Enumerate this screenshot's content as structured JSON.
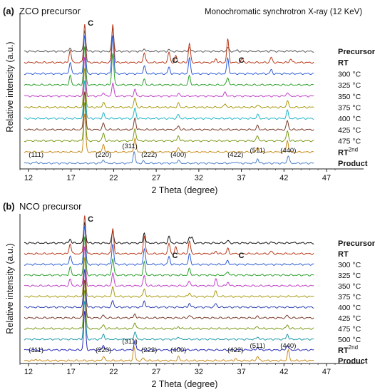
{
  "chart_data": [
    {
      "type": "line",
      "panel_label": "(a)",
      "title": "ZCO precursor",
      "subtitle": "Monochromatic synchrotron X-ray (12 KeV)",
      "xlabel": "2 Theta (degree)",
      "ylabel": "Relative intensity (a.u.)",
      "xlim": [
        11,
        48
      ],
      "x_ticks": [
        12,
        17,
        22,
        27,
        32,
        37,
        42,
        47
      ],
      "series": [
        {
          "name": "Precursor",
          "color": "#555555",
          "peaks": [
            [
              16.9,
              0.25
            ],
            [
              18.6,
              1.6
            ],
            [
              21.9,
              1.8
            ],
            [
              25.6,
              0.2
            ],
            [
              28.5,
              0.12
            ],
            [
              30.9,
              0.3
            ],
            [
              35.4,
              0.3
            ],
            [
              36.5,
              0.08
            ],
            [
              40.5,
              0.07
            ],
            [
              42.8,
              0.07
            ]
          ]
        },
        {
          "name": "RT",
          "color": "#b83a1a",
          "peaks": [
            [
              16.9,
              1.0
            ],
            [
              18.6,
              3.0
            ],
            [
              21.9,
              3.0
            ],
            [
              25.6,
              0.8
            ],
            [
              28.5,
              0.8
            ],
            [
              29.3,
              0.5
            ],
            [
              30.9,
              1.5
            ],
            [
              34.0,
              0.3
            ],
            [
              35.4,
              1.8
            ],
            [
              37.1,
              0.3
            ],
            [
              40.5,
              0.4
            ],
            [
              42.8,
              0.3
            ]
          ]
        },
        {
          "name": "300 °C",
          "color": "#2d5dd6",
          "peaks": [
            [
              16.9,
              0.9
            ],
            [
              18.6,
              3.0
            ],
            [
              21.9,
              3.0
            ],
            [
              25.6,
              0.6
            ],
            [
              28.5,
              0.5
            ],
            [
              30.9,
              1.2
            ],
            [
              35.4,
              1.2
            ],
            [
              40.5,
              0.3
            ]
          ]
        },
        {
          "name": "325 °C",
          "color": "#2ca02c",
          "peaks": [
            [
              16.9,
              0.7
            ],
            [
              18.6,
              3.0
            ],
            [
              21.9,
              2.5
            ],
            [
              25.6,
              0.4
            ],
            [
              30.9,
              0.7
            ],
            [
              35.4,
              0.6
            ]
          ]
        },
        {
          "name": "350 °C",
          "color": "#c040c8",
          "peaks": [
            [
              18.6,
              3.0
            ],
            [
              20.8,
              0.3
            ],
            [
              21.9,
              1.0
            ],
            [
              24.5,
              0.5
            ],
            [
              29.6,
              0.2
            ],
            [
              35.1,
              0.3
            ],
            [
              42.4,
              0.3
            ]
          ]
        },
        {
          "name": "375 °C",
          "color": "#a89a10",
          "peaks": [
            [
              18.6,
              3.0
            ],
            [
              20.8,
              0.4
            ],
            [
              24.5,
              0.7
            ],
            [
              29.6,
              0.3
            ],
            [
              35.1,
              0.3
            ],
            [
              38.9,
              0.2
            ],
            [
              42.4,
              0.5
            ]
          ]
        },
        {
          "name": "400 °C",
          "color": "#1fb5c8",
          "peaks": [
            [
              18.6,
              3.0
            ],
            [
              20.8,
              0.4
            ],
            [
              24.5,
              0.8
            ],
            [
              29.6,
              0.3
            ],
            [
              38.9,
              0.3
            ],
            [
              42.4,
              0.6
            ]
          ]
        },
        {
          "name": "425 °C",
          "color": "#7a3b2a",
          "peaks": [
            [
              18.6,
              3.0
            ],
            [
              20.8,
              0.5
            ],
            [
              24.5,
              0.9
            ],
            [
              29.6,
              0.3
            ],
            [
              38.9,
              0.3
            ],
            [
              42.4,
              0.7
            ]
          ]
        },
        {
          "name": "475 °C",
          "color": "#7a9a18",
          "peaks": [
            [
              18.6,
              3.0
            ],
            [
              20.8,
              0.6
            ],
            [
              24.5,
              1.0
            ],
            [
              29.6,
              0.4
            ],
            [
              38.9,
              0.4
            ],
            [
              42.4,
              0.8
            ]
          ]
        },
        {
          "name": "RT",
          "name_superscript": "2nd",
          "color": "#c98a1c",
          "peaks": [
            [
              18.6,
              3.0
            ],
            [
              20.8,
              0.6
            ],
            [
              24.5,
              1.1
            ],
            [
              29.6,
              0.4
            ],
            [
              38.9,
              0.4
            ],
            [
              42.4,
              0.9
            ]
          ]
        },
        {
          "name": "Product",
          "color": "#4d7fc9",
          "peaks": [
            [
              12.9,
              0.12
            ],
            [
              20.8,
              0.3
            ],
            [
              24.4,
              0.9
            ],
            [
              25.5,
              0.15
            ],
            [
              29.6,
              0.25
            ],
            [
              36.3,
              0.12
            ],
            [
              38.9,
              0.35
            ],
            [
              42.5,
              0.6
            ]
          ]
        }
      ],
      "peak_labels": [
        {
          "text": "(111)",
          "x": 12.9
        },
        {
          "text": "(220)",
          "x": 20.8
        },
        {
          "text": "(311)",
          "x": 24.4
        },
        {
          "text": "(222)",
          "x": 25.5
        },
        {
          "text": "(400)",
          "x": 29.6
        },
        {
          "text": "(422)",
          "x": 36.3
        },
        {
          "text": "(511)",
          "x": 38.9
        },
        {
          "text": "(440)",
          "x": 42.5
        }
      ],
      "c_markers": [
        {
          "text": "C",
          "x": 19.3
        },
        {
          "text": "C",
          "x": 29.2
        },
        {
          "text": "C",
          "x": 37.0
        }
      ]
    },
    {
      "type": "line",
      "panel_label": "(b)",
      "title": "NCO precursor",
      "subtitle": "",
      "xlabel": "2 Theta (degree)",
      "ylabel": "Relative intensity (a.u.)",
      "xlim": [
        11,
        48
      ],
      "x_ticks": [
        12,
        17,
        22,
        27,
        32,
        37,
        42,
        47
      ],
      "series": [
        {
          "name": "Precursor",
          "color": "#111111",
          "peaks": [
            [
              16.9,
              0.3
            ],
            [
              18.6,
              1.6
            ],
            [
              21.9,
              0.9
            ],
            [
              25.6,
              0.8
            ],
            [
              28.5,
              0.5
            ],
            [
              30.9,
              0.45
            ],
            [
              31.2,
              0.4
            ],
            [
              35.4,
              0.2
            ],
            [
              40.5,
              0.07
            ],
            [
              43.0,
              0.06
            ]
          ]
        },
        {
          "name": "RT",
          "color": "#b83a1a",
          "peaks": [
            [
              16.9,
              0.8
            ],
            [
              18.6,
              3.0
            ],
            [
              21.9,
              2.0
            ],
            [
              25.6,
              1.4
            ],
            [
              28.5,
              0.8
            ],
            [
              29.3,
              0.5
            ],
            [
              30.9,
              1.0
            ],
            [
              34.0,
              0.2
            ],
            [
              35.4,
              0.4
            ],
            [
              40.5,
              0.2
            ]
          ]
        },
        {
          "name": "300 °C",
          "color": "#2d5dd6",
          "peaks": [
            [
              16.9,
              0.7
            ],
            [
              18.6,
              3.0
            ],
            [
              21.9,
              1.6
            ],
            [
              25.6,
              1.2
            ],
            [
              28.5,
              0.6
            ],
            [
              30.9,
              0.8
            ],
            [
              35.4,
              0.3
            ]
          ]
        },
        {
          "name": "325 °C",
          "color": "#2ca02c",
          "peaks": [
            [
              16.9,
              0.6
            ],
            [
              18.6,
              3.0
            ],
            [
              21.9,
              1.3
            ],
            [
              25.6,
              1.0
            ],
            [
              30.9,
              0.5
            ],
            [
              35.4,
              0.3
            ]
          ]
        },
        {
          "name": "350 °C",
          "color": "#c040c8",
          "peaks": [
            [
              16.9,
              0.5
            ],
            [
              18.6,
              3.0
            ],
            [
              21.9,
              1.0
            ],
            [
              25.6,
              0.8
            ],
            [
              30.9,
              0.4
            ],
            [
              34.0,
              0.5
            ],
            [
              35.4,
              0.3
            ]
          ]
        },
        {
          "name": "375 °C",
          "color": "#a89a10",
          "peaks": [
            [
              18.6,
              3.0
            ],
            [
              21.9,
              0.7
            ],
            [
              25.6,
              0.6
            ],
            [
              30.9,
              0.3
            ],
            [
              34.0,
              0.4
            ]
          ]
        },
        {
          "name": "400 °C",
          "color": "#2a3db0",
          "peaks": [
            [
              18.6,
              3.0
            ],
            [
              21.9,
              0.5
            ],
            [
              25.6,
              0.5
            ],
            [
              30.9,
              0.3
            ],
            [
              34.0,
              0.3
            ]
          ]
        },
        {
          "name": "425 °C",
          "color": "#7a3b2a",
          "peaks": [
            [
              18.6,
              3.0
            ],
            [
              20.8,
              0.2
            ],
            [
              24.5,
              0.3
            ],
            [
              30.9,
              0.2
            ],
            [
              38.9,
              0.1
            ],
            [
              42.4,
              0.2
            ]
          ]
        },
        {
          "name": "475 °C",
          "color": "#7a9a18",
          "peaks": [
            [
              18.6,
              3.0
            ],
            [
              20.8,
              0.3
            ],
            [
              24.5,
              0.5
            ],
            [
              29.6,
              0.15
            ],
            [
              38.9,
              0.15
            ],
            [
              42.4,
              0.3
            ]
          ]
        },
        {
          "name": "500 °C",
          "color": "#1f9aa8",
          "peaks": [
            [
              18.6,
              3.0
            ],
            [
              20.8,
              0.4
            ],
            [
              24.5,
              0.6
            ],
            [
              29.6,
              0.2
            ],
            [
              38.9,
              0.2
            ],
            [
              42.4,
              0.4
            ]
          ]
        },
        {
          "name": "RT",
          "name_superscript": "2nd",
          "color": "#2a2ab8",
          "peaks": [
            [
              18.6,
              3.0
            ],
            [
              20.8,
              0.4
            ],
            [
              24.5,
              0.7
            ],
            [
              29.6,
              0.2
            ],
            [
              38.9,
              0.2
            ],
            [
              42.4,
              0.4
            ]
          ]
        },
        {
          "name": "Product",
          "color": "#c98a1c",
          "peaks": [
            [
              12.9,
              0.12
            ],
            [
              20.8,
              0.35
            ],
            [
              24.4,
              1.0
            ],
            [
              25.5,
              0.2
            ],
            [
              29.6,
              0.3
            ],
            [
              36.3,
              0.15
            ],
            [
              38.9,
              0.35
            ],
            [
              42.5,
              0.8
            ]
          ]
        }
      ],
      "peak_labels": [
        {
          "text": "(111)",
          "x": 12.9
        },
        {
          "text": "(220)",
          "x": 20.8
        },
        {
          "text": "(311)",
          "x": 24.4
        },
        {
          "text": "(222)",
          "x": 25.5
        },
        {
          "text": "(400)",
          "x": 29.6
        },
        {
          "text": "(422)",
          "x": 36.3
        },
        {
          "text": "(511)",
          "x": 38.9
        },
        {
          "text": "(440)",
          "x": 42.5
        }
      ],
      "c_markers": [
        {
          "text": "C",
          "x": 19.3
        },
        {
          "text": "C",
          "x": 29.2
        },
        {
          "text": "C",
          "x": 37.0
        }
      ]
    }
  ]
}
